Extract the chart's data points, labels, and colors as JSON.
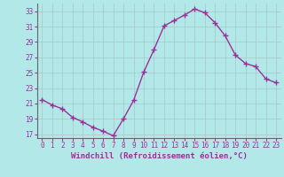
{
  "x": [
    0,
    1,
    2,
    3,
    4,
    5,
    6,
    7,
    8,
    9,
    10,
    11,
    12,
    13,
    14,
    15,
    16,
    17,
    18,
    19,
    20,
    21,
    22,
    23
  ],
  "y": [
    21.5,
    20.8,
    20.3,
    19.2,
    18.6,
    17.9,
    17.4,
    16.8,
    19.0,
    21.4,
    25.1,
    28.0,
    31.1,
    31.8,
    32.5,
    33.3,
    32.8,
    31.5,
    29.8,
    27.3,
    26.2,
    25.8,
    24.2,
    23.7
  ],
  "line_color": "#993399",
  "marker": "+",
  "marker_size": 4,
  "marker_linewidth": 1.0,
  "bg_color": "#b3e8e8",
  "grid_color": "#aacccc",
  "xlabel": "Windchill (Refroidissement éolien,°C)",
  "ylim": [
    16.5,
    34
  ],
  "xlim": [
    -0.5,
    23.5
  ],
  "yticks": [
    17,
    19,
    21,
    23,
    25,
    27,
    29,
    31,
    33
  ],
  "xticks": [
    0,
    1,
    2,
    3,
    4,
    5,
    6,
    7,
    8,
    9,
    10,
    11,
    12,
    13,
    14,
    15,
    16,
    17,
    18,
    19,
    20,
    21,
    22,
    23
  ],
  "tick_color": "#993399",
  "label_color": "#993399",
  "tick_fontsize": 5.5,
  "xlabel_fontsize": 6.5,
  "linewidth": 1.0
}
